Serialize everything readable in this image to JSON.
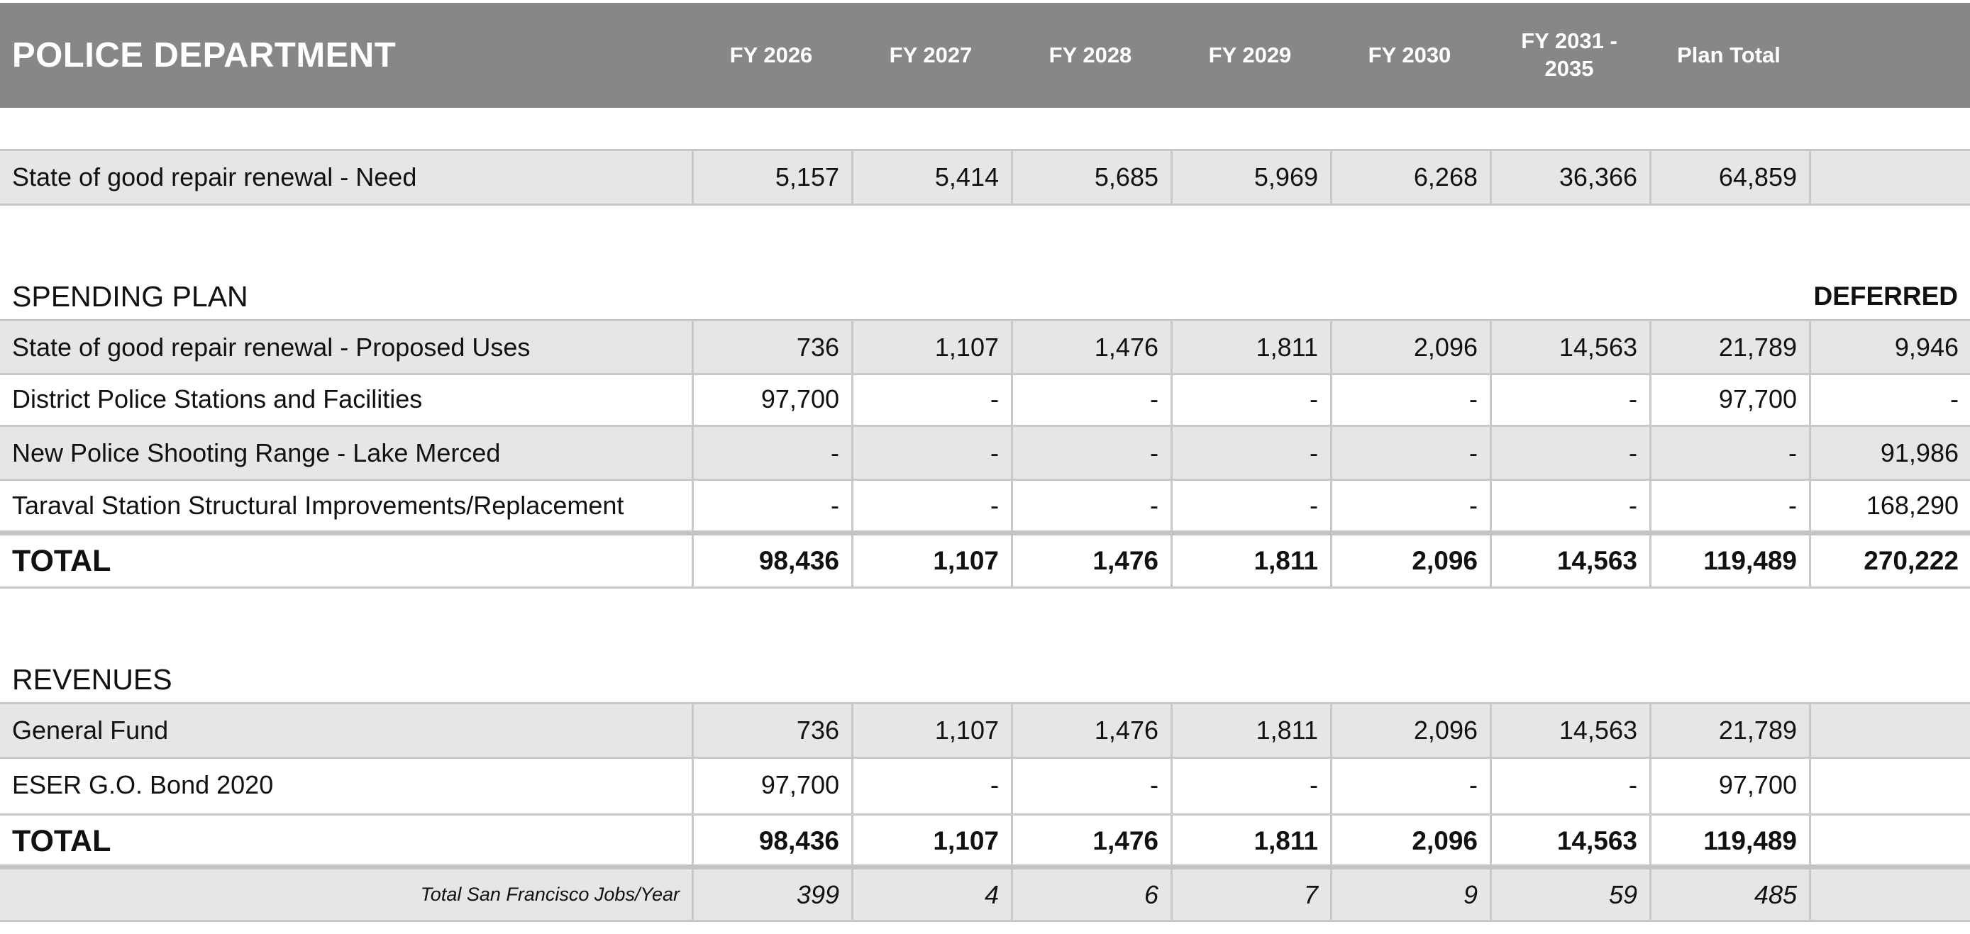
{
  "header": {
    "title": "POLICE DEPARTMENT",
    "columns": [
      "FY 2026",
      "FY 2027",
      "FY 2028",
      "FY 2029",
      "FY 2030",
      "FY 2031 - 2035",
      "Plan Total"
    ]
  },
  "need": {
    "label": "State of good repair renewal - Need",
    "values": [
      "5,157",
      "5,414",
      "5,685",
      "5,969",
      "6,268",
      "36,366",
      "64,859",
      ""
    ]
  },
  "spending_plan": {
    "title": "SPENDING PLAN",
    "deferred_label": "DEFERRED",
    "rows": [
      {
        "label": "State of good repair renewal - Proposed Uses",
        "values": [
          "736",
          "1,107",
          "1,476",
          "1,811",
          "2,096",
          "14,563",
          "21,789",
          "9,946"
        ]
      },
      {
        "label": "District Police Stations and Facilities",
        "values": [
          "97,700",
          "-",
          "-",
          "-",
          "-",
          "-",
          "97,700",
          "-"
        ]
      },
      {
        "label": "New Police Shooting Range - Lake Merced",
        "values": [
          "-",
          "-",
          "-",
          "-",
          "-",
          "-",
          "-",
          "91,986"
        ]
      },
      {
        "label": "Taraval Station Structural Improvements/Replacement",
        "values": [
          "-",
          "-",
          "-",
          "-",
          "-",
          "-",
          "-",
          "168,290"
        ]
      }
    ],
    "total": {
      "label": "TOTAL",
      "values": [
        "98,436",
        "1,107",
        "1,476",
        "1,811",
        "2,096",
        "14,563",
        "119,489",
        "270,222"
      ]
    }
  },
  "revenues": {
    "title": "REVENUES",
    "rows": [
      {
        "label": "General Fund",
        "values": [
          "736",
          "1,107",
          "1,476",
          "1,811",
          "2,096",
          "14,563",
          "21,789",
          ""
        ]
      },
      {
        "label": "ESER G.O. Bond 2020",
        "values": [
          "97,700",
          "-",
          "-",
          "-",
          "-",
          "-",
          "97,700",
          ""
        ]
      }
    ],
    "total": {
      "label": "TOTAL",
      "values": [
        "98,436",
        "1,107",
        "1,476",
        "1,811",
        "2,096",
        "14,563",
        "119,489",
        ""
      ]
    },
    "jobs": {
      "label": "Total San Francisco Jobs/Year",
      "values": [
        "399",
        "4",
        "6",
        "7",
        "9",
        "59",
        "485",
        ""
      ]
    }
  }
}
